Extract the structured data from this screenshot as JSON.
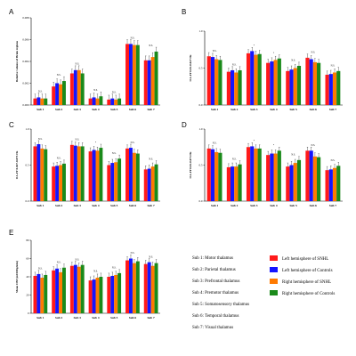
{
  "colors": {
    "s1": "#ff1a1a",
    "s2": "#1414ff",
    "s3": "#ff7a00",
    "s4": "#1a8a1a"
  },
  "legend": {
    "subregions": [
      "Sub 1: Motor thalamus",
      "Sub 2: Parietal thalamus",
      "Sub 3: Prefrontal thalamus",
      "Sub 4: Premotor thalamus",
      "Sub 5: Somatosensory thalamus",
      "Sub 6: Temporal thalamus",
      "Sub 7: Visual thalamus"
    ],
    "series": [
      "Left hemisphere of SNHL",
      "Left hemisphere of Controls",
      "Right hemisphere of SNHL",
      "Right hemisphere of Controls"
    ]
  },
  "chart_data": [
    {
      "type": "bar",
      "letter": "A",
      "ylabel": "Relative volume of Brain regions",
      "ylim": [
        0,
        0.008
      ],
      "ticks": [
        "0.000",
        "0.002",
        "0.004",
        "0.006",
        "0.008"
      ],
      "tick_values": [
        0,
        0.002,
        0.004,
        0.006,
        0.008
      ],
      "categories": [
        "Sub 1",
        "Sub 2",
        "Sub 3",
        "Sub 4",
        "Sub 5",
        "Sub 6",
        "Sub 7"
      ],
      "series": [
        {
          "name": "Left hemisphere of SNHL",
          "values": [
            0.0006,
            0.0017,
            0.0029,
            0.0006,
            0.0005,
            0.0056,
            0.0041
          ]
        },
        {
          "name": "Left hemisphere of Controls",
          "values": [
            0.0007,
            0.002,
            0.0032,
            0.0007,
            0.0006,
            0.0056,
            0.0041
          ]
        },
        {
          "name": "Right hemisphere of SNHL",
          "values": [
            0.0006,
            0.0019,
            0.0032,
            0.0006,
            0.0005,
            0.0055,
            0.0044
          ]
        },
        {
          "name": "Right hemisphere of Controls",
          "values": [
            0.0006,
            0.0022,
            0.0029,
            0.0008,
            0.0006,
            0.0055,
            0.0049
          ]
        }
      ],
      "labels": [
        "N.S.",
        "N.S.",
        "N.S.",
        "N.S.",
        "N.S.",
        "N.S.",
        "N.S."
      ]
    },
    {
      "type": "bar",
      "letter": "B",
      "ylabel": "OA-FF 0.01-0.027 Hz",
      "ylim": [
        0,
        1.0
      ],
      "ticks": [
        "0.0",
        "0.5",
        "1.0"
      ],
      "tick_values": [
        0,
        0.5,
        1.0
      ],
      "categories": [
        "Sub 1",
        "Sub 2",
        "Sub 3",
        "Sub 4",
        "Sub 5",
        "Sub 6",
        "Sub 7"
      ],
      "series": [
        {
          "name": "Left hemisphere of SNHL",
          "values": [
            0.66,
            0.45,
            0.7,
            0.57,
            0.46,
            0.64,
            0.41
          ]
        },
        {
          "name": "Left hemisphere of Controls",
          "values": [
            0.65,
            0.47,
            0.73,
            0.59,
            0.48,
            0.62,
            0.42
          ]
        },
        {
          "name": "Right hemisphere of SNHL",
          "values": [
            0.62,
            0.44,
            0.68,
            0.61,
            0.5,
            0.58,
            0.44
          ]
        },
        {
          "name": "Right hemisphere of Controls",
          "values": [
            0.61,
            0.47,
            0.69,
            0.63,
            0.53,
            0.57,
            0.46
          ]
        }
      ],
      "labels": [
        "N.S.",
        "N.S.",
        "*",
        "*",
        "N.S.",
        "N.S.",
        "N.S."
      ]
    },
    {
      "type": "bar",
      "letter": "C",
      "ylabel": "OA-FF 0.027-0.073 Hz",
      "ylim": [
        0,
        1.0
      ],
      "ticks": [
        "0.0",
        "0.5",
        "1.0"
      ],
      "tick_values": [
        0,
        0.5,
        1.0
      ],
      "categories": [
        "Sub 1",
        "Sub 2",
        "Sub 3",
        "Sub 4",
        "Sub 5",
        "Sub 6",
        "Sub 7"
      ],
      "series": [
        {
          "name": "Left hemisphere of SNHL",
          "values": [
            0.76,
            0.48,
            0.78,
            0.69,
            0.5,
            0.73,
            0.44
          ]
        },
        {
          "name": "Left hemisphere of Controls",
          "values": [
            0.79,
            0.49,
            0.77,
            0.71,
            0.53,
            0.74,
            0.45
          ]
        },
        {
          "name": "Right hemisphere of SNHL",
          "values": [
            0.73,
            0.5,
            0.76,
            0.7,
            0.54,
            0.67,
            0.48
          ]
        },
        {
          "name": "Right hemisphere of Controls",
          "values": [
            0.72,
            0.52,
            0.76,
            0.74,
            0.59,
            0.66,
            0.51
          ]
        }
      ],
      "labels": [
        "N.S.",
        "N.S.",
        "N.S.",
        "*",
        "N.S.",
        "N.S.",
        "N.S."
      ]
    },
    {
      "type": "bar",
      "letter": "D",
      "ylabel": "OA-FF 0.01-0.073 Hz",
      "ylim": [
        0,
        1.0
      ],
      "ticks": [
        "0.0",
        "0.5",
        "1.0"
      ],
      "tick_values": [
        0,
        0.5,
        1.0
      ],
      "categories": [
        "Sub 1",
        "Sub 2",
        "Sub 3",
        "Sub 4",
        "Sub 5",
        "Sub 6",
        "Sub 7"
      ],
      "series": [
        {
          "name": "Left hemisphere of SNHL",
          "values": [
            0.73,
            0.47,
            0.75,
            0.64,
            0.48,
            0.7,
            0.43
          ]
        },
        {
          "name": "Left hemisphere of Controls",
          "values": [
            0.72,
            0.48,
            0.76,
            0.66,
            0.5,
            0.7,
            0.44
          ]
        },
        {
          "name": "Right hemisphere of SNHL",
          "values": [
            0.68,
            0.48,
            0.73,
            0.66,
            0.53,
            0.62,
            0.46
          ]
        },
        {
          "name": "Right hemisphere of Controls",
          "values": [
            0.67,
            0.51,
            0.73,
            0.7,
            0.57,
            0.61,
            0.49
          ]
        }
      ],
      "labels": [
        "N.S.",
        "N.S.",
        "*",
        "*",
        "N.S.",
        "N.S.",
        "N.S."
      ]
    },
    {
      "type": "bar",
      "letter": "E",
      "ylabel": "Mean CBF (ml/100g/min)",
      "ylim": [
        0,
        80
      ],
      "ticks": [
        "0",
        "20",
        "40",
        "60",
        "80"
      ],
      "tick_values": [
        0,
        20,
        40,
        60,
        80
      ],
      "categories": [
        "Sub 1",
        "Sub 2",
        "Sub 3",
        "Sub 4",
        "Sub 5",
        "Sub 6",
        "Sub 7"
      ],
      "series": [
        {
          "name": "Left hemisphere of SNHL",
          "values": [
            41,
            47,
            52,
            36,
            40,
            58,
            54
          ]
        },
        {
          "name": "Left hemisphere of Controls",
          "values": [
            43,
            49,
            53,
            37,
            41,
            60,
            56
          ]
        },
        {
          "name": "Right hemisphere of SNHL",
          "values": [
            39,
            45,
            51,
            39,
            42,
            55,
            52
          ]
        },
        {
          "name": "Right hemisphere of Controls",
          "values": [
            42,
            50,
            53,
            40,
            44,
            57,
            55
          ]
        }
      ],
      "labels": [
        "N.S.",
        "N.S.",
        "N.S.",
        "N.S.",
        "N.S.",
        "N.S.",
        "N.S."
      ]
    }
  ]
}
